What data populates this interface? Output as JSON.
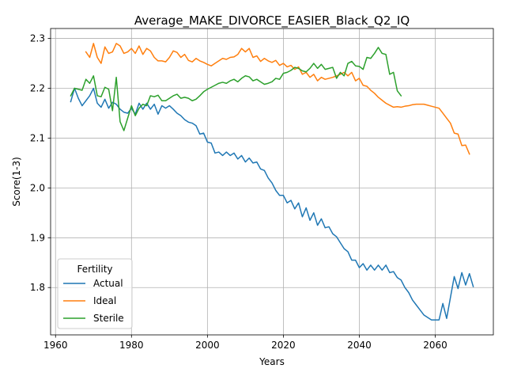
{
  "chart_data": {
    "type": "line",
    "title": "Average_MAKE_DIVORCE_EASIER_Black_Q2_IQ",
    "xlabel": "Years",
    "ylabel": "Score(1-3)",
    "xlim": [
      1958.7,
      1975.3
    ],
    "ylim": [
      1.705,
      2.32
    ],
    "x_ticks": [
      1960,
      1980,
      2000,
      2020,
      2040,
      2060
    ],
    "y_ticks": [
      1.8,
      1.9,
      2.0,
      2.1,
      2.2,
      2.3
    ],
    "x_tick_labels": [
      "1960",
      "1980",
      "2000",
      "2020",
      "2040",
      "2060"
    ],
    "y_tick_labels": [
      "1.8",
      "1.9",
      "2.0",
      "2.1",
      "2.2",
      "2.3"
    ],
    "grid": true,
    "legend": {
      "title": "Fertility",
      "placement": "lower-left"
    },
    "series": [
      {
        "name": "Actual",
        "color": "#1f77b4",
        "x_start": 1964,
        "values": [
          2.173,
          2.2,
          2.18,
          2.165,
          2.175,
          2.185,
          2.2,
          2.17,
          2.162,
          2.178,
          2.16,
          2.172,
          2.168,
          2.158,
          2.152,
          2.15,
          2.16,
          2.148,
          2.17,
          2.158,
          2.17,
          2.158,
          2.168,
          2.148,
          2.165,
          2.16,
          2.165,
          2.158,
          2.15,
          2.145,
          2.137,
          2.132,
          2.13,
          2.125,
          2.108,
          2.11,
          2.092,
          2.09,
          2.07,
          2.072,
          2.065,
          2.072,
          2.065,
          2.07,
          2.058,
          2.065,
          2.052,
          2.06,
          2.05,
          2.052,
          2.038,
          2.035,
          2.02,
          2.01,
          1.995,
          1.985,
          1.985,
          1.97,
          1.975,
          1.958,
          1.97,
          1.942,
          1.96,
          1.935,
          1.95,
          1.925,
          1.938,
          1.92,
          1.922,
          1.908,
          1.902,
          1.89,
          1.878,
          1.872,
          1.855,
          1.855,
          1.84,
          1.848,
          1.835,
          1.845,
          1.835,
          1.845,
          1.835,
          1.845,
          1.83,
          1.832,
          1.82,
          1.815,
          1.8,
          1.79,
          1.775,
          1.765,
          1.755,
          1.745,
          1.74,
          1.735,
          1.735,
          1.735,
          1.768,
          1.738,
          1.78,
          1.822,
          1.798,
          1.83,
          1.805,
          1.828,
          1.802
        ]
      },
      {
        "name": "Ideal",
        "color": "#ff7f0e",
        "x_start": 1968,
        "values": [
          2.273,
          2.262,
          2.29,
          2.262,
          2.25,
          2.283,
          2.27,
          2.273,
          2.29,
          2.285,
          2.27,
          2.273,
          2.28,
          2.27,
          2.285,
          2.268,
          2.28,
          2.275,
          2.262,
          2.255,
          2.255,
          2.253,
          2.262,
          2.275,
          2.272,
          2.262,
          2.268,
          2.256,
          2.253,
          2.26,
          2.255,
          2.252,
          2.248,
          2.245,
          2.25,
          2.255,
          2.26,
          2.258,
          2.262,
          2.263,
          2.268,
          2.28,
          2.273,
          2.28,
          2.262,
          2.265,
          2.254,
          2.26,
          2.255,
          2.252,
          2.256,
          2.246,
          2.25,
          2.243,
          2.246,
          2.238,
          2.243,
          2.228,
          2.232,
          2.222,
          2.228,
          2.215,
          2.222,
          2.218,
          2.22,
          2.222,
          2.225,
          2.228,
          2.232,
          2.225,
          2.232,
          2.215,
          2.22,
          2.206,
          2.204,
          2.196,
          2.19,
          2.182,
          2.176,
          2.17,
          2.166,
          2.162,
          2.163,
          2.162,
          2.164,
          2.165,
          2.167,
          2.168,
          2.168,
          2.168,
          2.166,
          2.164,
          2.162,
          2.16,
          2.15,
          2.14,
          2.13,
          2.11,
          2.108,
          2.085,
          2.086,
          2.068
        ]
      },
      {
        "name": "Sterile",
        "color": "#2ca02c",
        "x_start": 1964,
        "values": [
          2.185,
          2.2,
          2.198,
          2.196,
          2.218,
          2.21,
          2.225,
          2.185,
          2.183,
          2.202,
          2.198,
          2.155,
          2.222,
          2.133,
          2.115,
          2.14,
          2.165,
          2.145,
          2.16,
          2.168,
          2.165,
          2.185,
          2.183,
          2.186,
          2.175,
          2.175,
          2.18,
          2.185,
          2.188,
          2.18,
          2.182,
          2.18,
          2.175,
          2.178,
          2.185,
          2.193,
          2.198,
          2.202,
          2.206,
          2.21,
          2.212,
          2.21,
          2.215,
          2.218,
          2.213,
          2.22,
          2.225,
          2.223,
          2.215,
          2.218,
          2.213,
          2.208,
          2.21,
          2.213,
          2.22,
          2.218,
          2.23,
          2.232,
          2.236,
          2.242,
          2.24,
          2.235,
          2.233,
          2.24,
          2.25,
          2.24,
          2.248,
          2.238,
          2.24,
          2.242,
          2.22,
          2.232,
          2.225,
          2.25,
          2.254,
          2.245,
          2.244,
          2.238,
          2.262,
          2.26,
          2.27,
          2.282,
          2.27,
          2.268,
          2.228,
          2.232,
          2.195,
          2.185
        ]
      }
    ]
  }
}
